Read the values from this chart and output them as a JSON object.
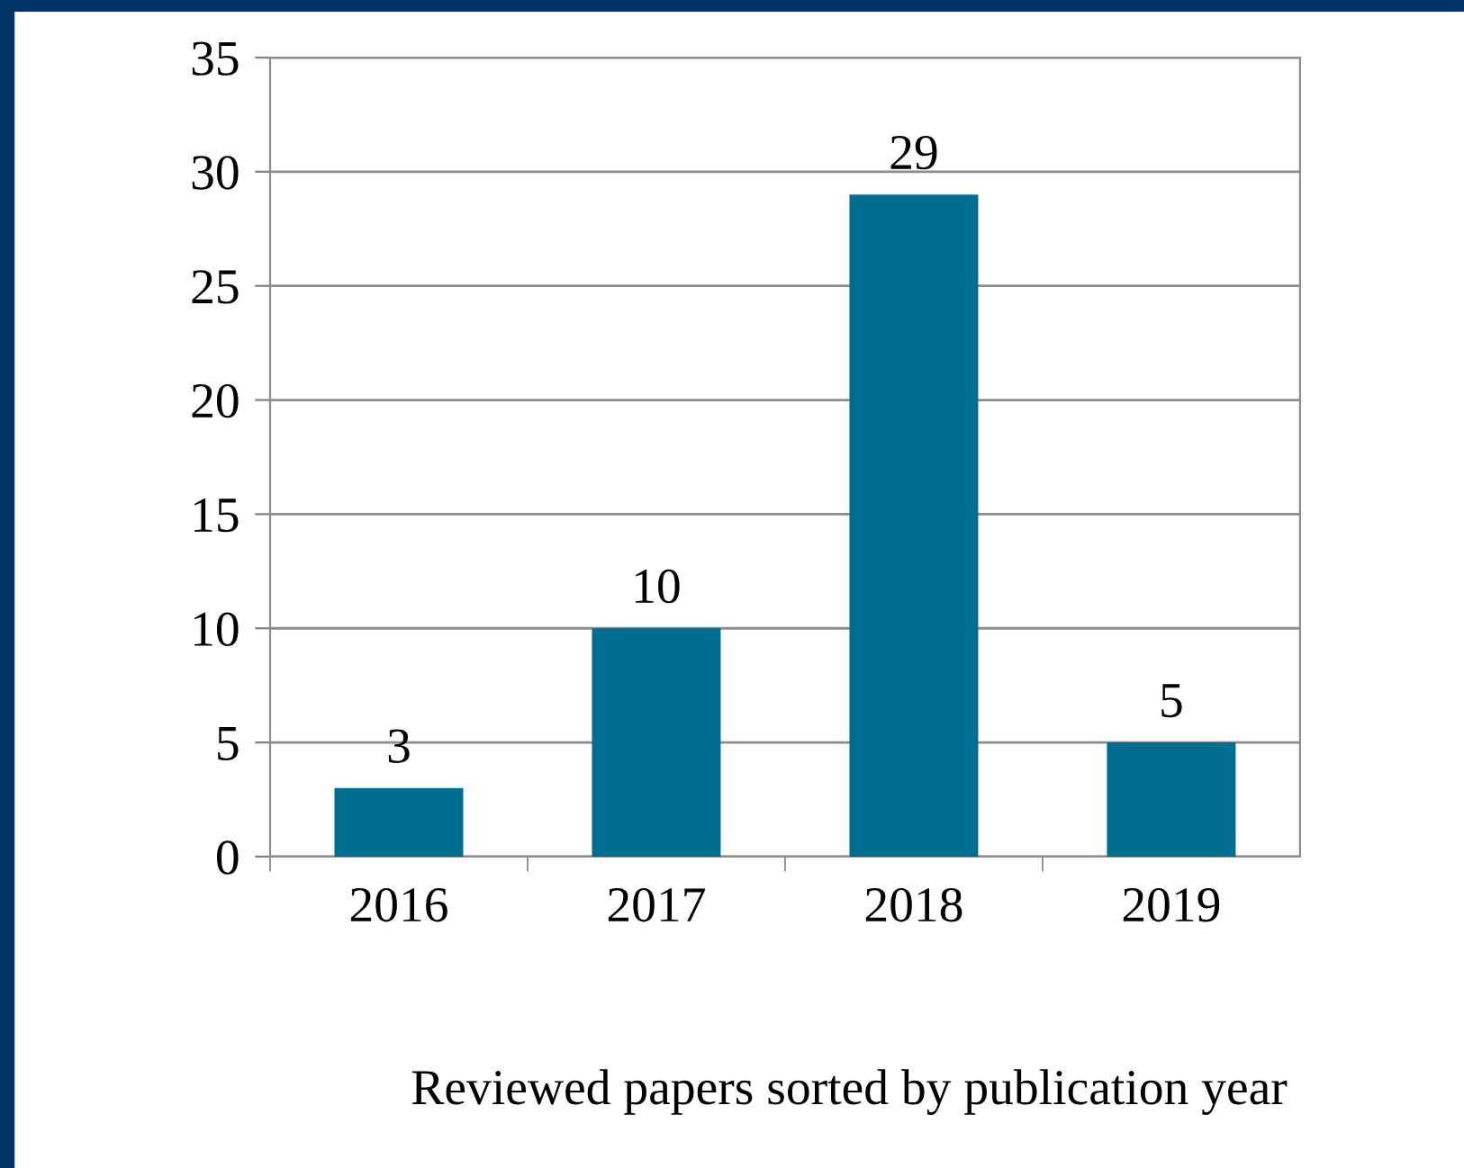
{
  "chart_data": {
    "type": "bar",
    "categories": [
      "2016",
      "2017",
      "2018",
      "2019"
    ],
    "values": [
      3,
      10,
      29,
      5
    ],
    "color": "#006e91",
    "ylim": [
      0,
      35
    ],
    "yticks": [
      0,
      5,
      10,
      15,
      20,
      25,
      30,
      35
    ],
    "grid": "y",
    "data_labels": true,
    "annotations": [
      "Reviewed papers sorted by publication year"
    ]
  }
}
